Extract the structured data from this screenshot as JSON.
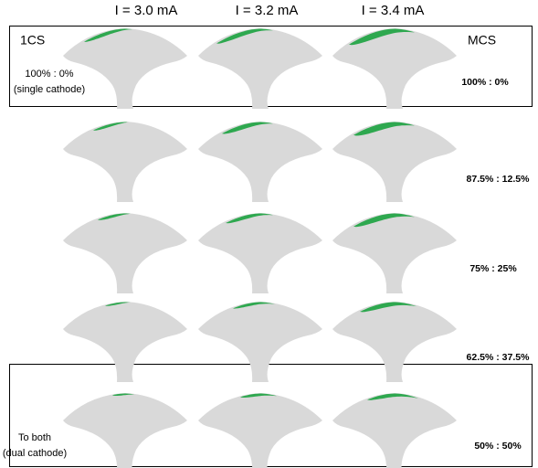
{
  "column_headers": [
    "I = 3.0 mA",
    "I = 3.2 mA",
    "I = 3.4 mA"
  ],
  "top_box": {
    "left_label": "1CS",
    "right_label": "MCS",
    "left_ratio": "100% : 0%",
    "left_note": "(single cathode)"
  },
  "row_ratios": [
    "100% : 0%",
    "87.5% : 12.5%",
    "75% : 25%",
    "62.5% : 37.5%",
    "50% : 50%"
  ],
  "bottom_box": {
    "left_label": "To both",
    "left_note": "(dual cathode)"
  }
}
